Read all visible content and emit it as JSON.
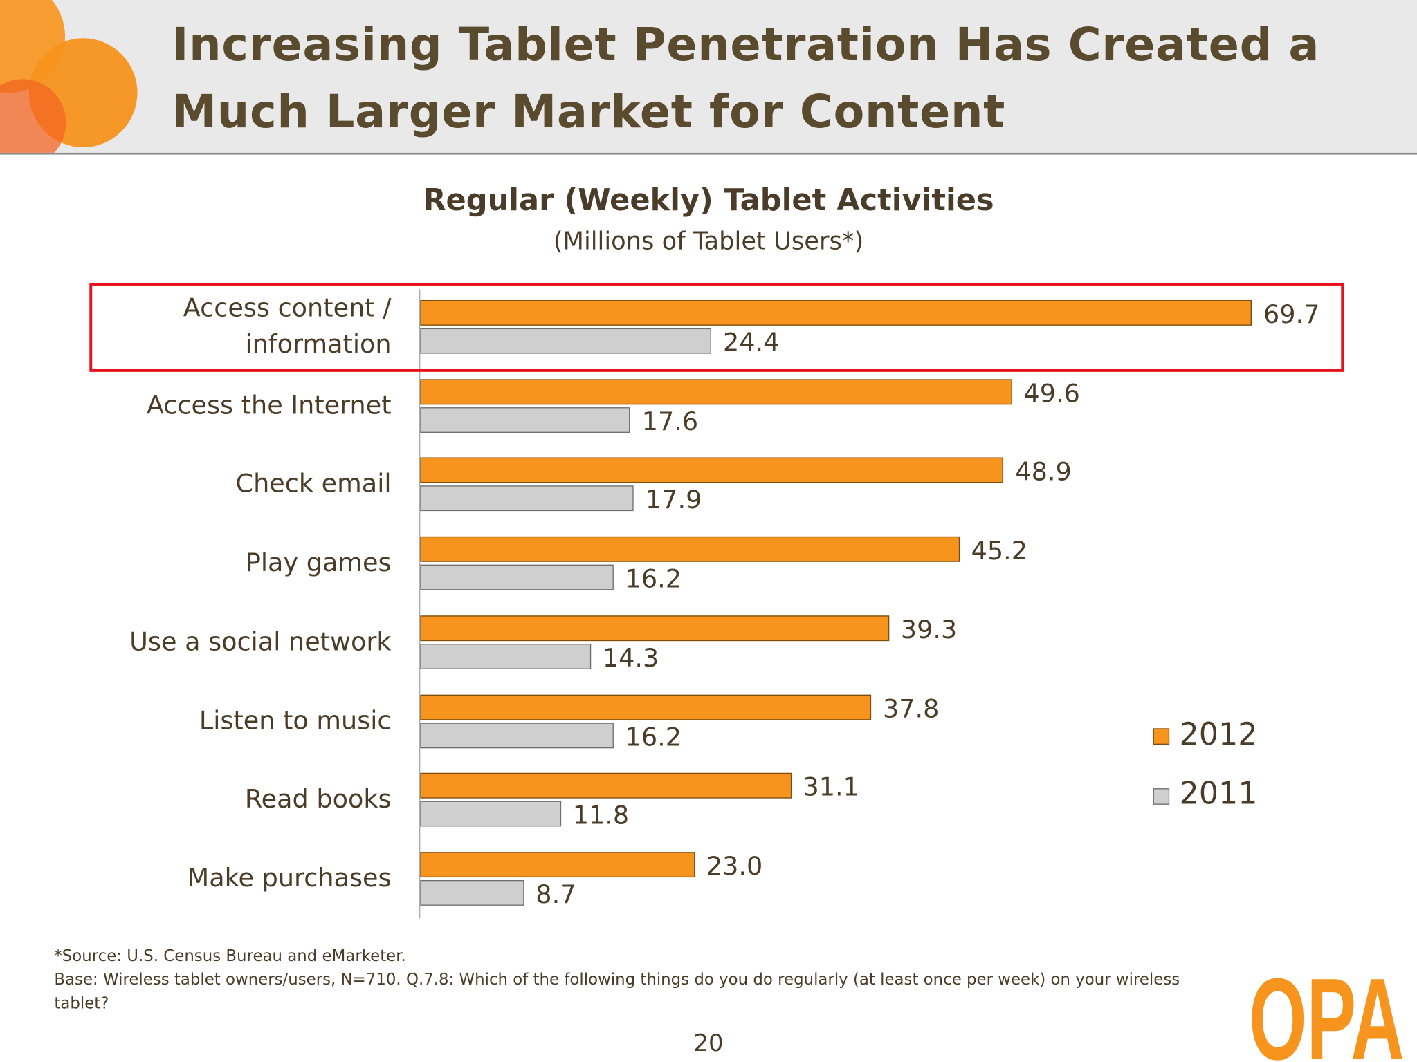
{
  "slide": {
    "title_line1": "Increasing Tablet Penetration Has Created a",
    "title_line2": "Much Larger Market for Content",
    "page_number": "20",
    "logo_text": "OPA"
  },
  "chart_data": {
    "type": "bar",
    "orientation": "horizontal",
    "title": "Regular (Weekly) Tablet Activities",
    "subtitle": "(Millions of Tablet Users*)",
    "categories": [
      "Access content / information",
      "Access the Internet",
      "Check email",
      "Play games",
      "Use a social network",
      "Listen to music",
      "Read books",
      "Make purchases"
    ],
    "category_lines": [
      [
        "Access content /",
        "information"
      ],
      [
        "Access the Internet"
      ],
      [
        "Check email"
      ],
      [
        "Play games"
      ],
      [
        "Use a social network"
      ],
      [
        "Listen to music"
      ],
      [
        "Read books"
      ],
      [
        "Make purchases"
      ]
    ],
    "series": [
      {
        "name": "2012",
        "color": "#f7941d",
        "values": [
          69.7,
          49.6,
          48.9,
          45.2,
          39.3,
          37.8,
          31.1,
          23.0
        ],
        "labels": [
          "69.7",
          "49.6",
          "48.9",
          "45.2",
          "39.3",
          "37.8",
          "31.1",
          "23.0"
        ]
      },
      {
        "name": "2011",
        "color": "#cfcfcf",
        "values": [
          24.4,
          17.6,
          17.9,
          16.2,
          14.3,
          16.2,
          11.8,
          8.7
        ],
        "labels": [
          "24.4",
          "17.6",
          "17.9",
          "16.2",
          "14.3",
          "16.2",
          "11.8",
          "8.7"
        ]
      }
    ],
    "xlim": [
      0,
      69.7
    ],
    "grid": false,
    "legend_position": "right",
    "highlighted_category": "Access content / information",
    "highlight_color": "#e8101c"
  },
  "footnotes": {
    "source": "*Source: U.S. Census Bureau and eMarketer.",
    "base_line1": "Base:   Wireless tablet owners/users, N=710.  Q.7.8:  Which of the following things do you do regularly (at least once per week) on your wireless",
    "base_line2": "tablet?"
  }
}
